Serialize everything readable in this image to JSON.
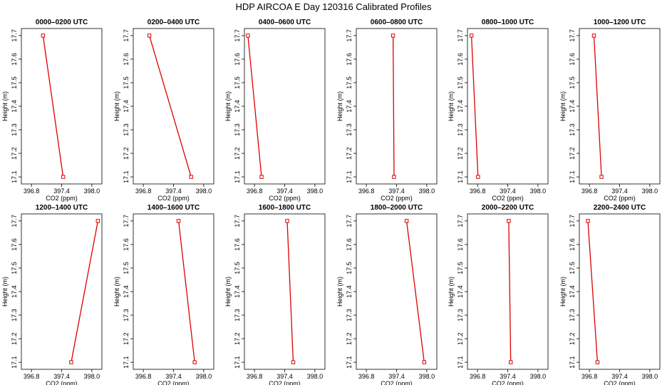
{
  "title": "HDP AIRCOA E  Day 120316  Calibrated Profiles",
  "colors": {
    "line": "#dd0000",
    "axis": "#000000",
    "background": "#ffffff"
  },
  "chart_data": {
    "type": "line",
    "layout": "2x6 small multiples",
    "xlabel": "CO2 (ppm)",
    "ylabel": "Height (m)",
    "xlim": [
      396.6,
      398.2
    ],
    "ylim": [
      17.07,
      17.73
    ],
    "xticks": [
      "396.8",
      "397.4",
      "398.0"
    ],
    "xtick_values": [
      396.8,
      397.4,
      398.0
    ],
    "yticks": [
      "17.1",
      "17.2",
      "17.3",
      "17.4",
      "17.5",
      "17.6",
      "17.7"
    ],
    "ytick_values": [
      17.1,
      17.2,
      17.3,
      17.4,
      17.5,
      17.6,
      17.7
    ],
    "grid": false,
    "panels": [
      {
        "title": "0000–0200 UTC",
        "points": [
          {
            "x": 397.03,
            "y": 17.7
          },
          {
            "x": 397.43,
            "y": 17.1
          }
        ]
      },
      {
        "title": "0200–0400 UTC",
        "points": [
          {
            "x": 396.92,
            "y": 17.7
          },
          {
            "x": 397.75,
            "y": 17.1
          }
        ]
      },
      {
        "title": "0400–0600 UTC",
        "points": [
          {
            "x": 396.67,
            "y": 17.7
          },
          {
            "x": 396.94,
            "y": 17.1
          }
        ]
      },
      {
        "title": "0600–0800 UTC",
        "points": [
          {
            "x": 397.33,
            "y": 17.7
          },
          {
            "x": 397.35,
            "y": 17.1
          }
        ]
      },
      {
        "title": "0800–1000 UTC",
        "points": [
          {
            "x": 396.68,
            "y": 17.7
          },
          {
            "x": 396.81,
            "y": 17.1
          }
        ]
      },
      {
        "title": "1000–1200 UTC",
        "points": [
          {
            "x": 396.89,
            "y": 17.7
          },
          {
            "x": 397.04,
            "y": 17.1
          }
        ]
      },
      {
        "title": "1200–1400 UTC",
        "points": [
          {
            "x": 398.12,
            "y": 17.7
          },
          {
            "x": 397.59,
            "y": 17.1
          }
        ]
      },
      {
        "title": "1400–1600 UTC",
        "points": [
          {
            "x": 397.5,
            "y": 17.7
          },
          {
            "x": 397.82,
            "y": 17.1
          }
        ]
      },
      {
        "title": "1600–1800 UTC",
        "points": [
          {
            "x": 397.45,
            "y": 17.7
          },
          {
            "x": 397.57,
            "y": 17.1
          }
        ]
      },
      {
        "title": "1800–2000 UTC",
        "points": [
          {
            "x": 397.6,
            "y": 17.7
          },
          {
            "x": 397.95,
            "y": 17.1
          }
        ]
      },
      {
        "title": "2000–2200 UTC",
        "points": [
          {
            "x": 397.42,
            "y": 17.7
          },
          {
            "x": 397.46,
            "y": 17.1
          }
        ]
      },
      {
        "title": "2200–2400 UTC",
        "points": [
          {
            "x": 396.77,
            "y": 17.7
          },
          {
            "x": 396.96,
            "y": 17.1
          }
        ]
      }
    ]
  }
}
